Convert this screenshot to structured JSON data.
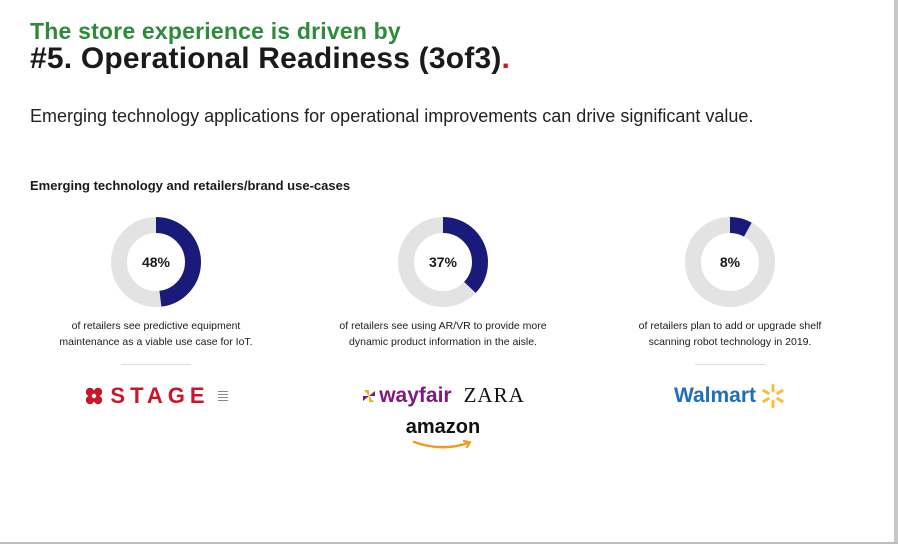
{
  "header": {
    "kicker": "The store experience is driven by",
    "title": "#5. Operational Readiness (3of3)",
    "title_dot": "."
  },
  "subtitle": "Emerging technology applications for operational improvements can drive significant value.",
  "section_heading": "Emerging technology and retailers/brand use-cases",
  "stats": [
    {
      "value_label": "48%",
      "percent": 48,
      "caption_line1": "of retailers see  predictive equipment",
      "caption_line2": "maintenance as a viable use case  for IoT."
    },
    {
      "value_label": "37%",
      "percent": 37,
      "caption_line1": "of retailers see  using AR/VR to provide more",
      "caption_line2": "dynamic product information in the aisle."
    },
    {
      "value_label": "8%",
      "percent": 8,
      "caption_line1": "of retailers  plan to add or upgrade shelf",
      "caption_line2": "scanning robot technology in 2019."
    }
  ],
  "logos": {
    "stage": "STAGE",
    "wayfair": "wayfair",
    "zara": "ZARA",
    "amazon": "amazon",
    "walmart": "Walmart"
  },
  "colors": {
    "kicker_green": "#2e8b3a",
    "accent_red": "#d4141c",
    "donut_fill": "#1a1a7a",
    "donut_track": "#e3e3e3"
  }
}
